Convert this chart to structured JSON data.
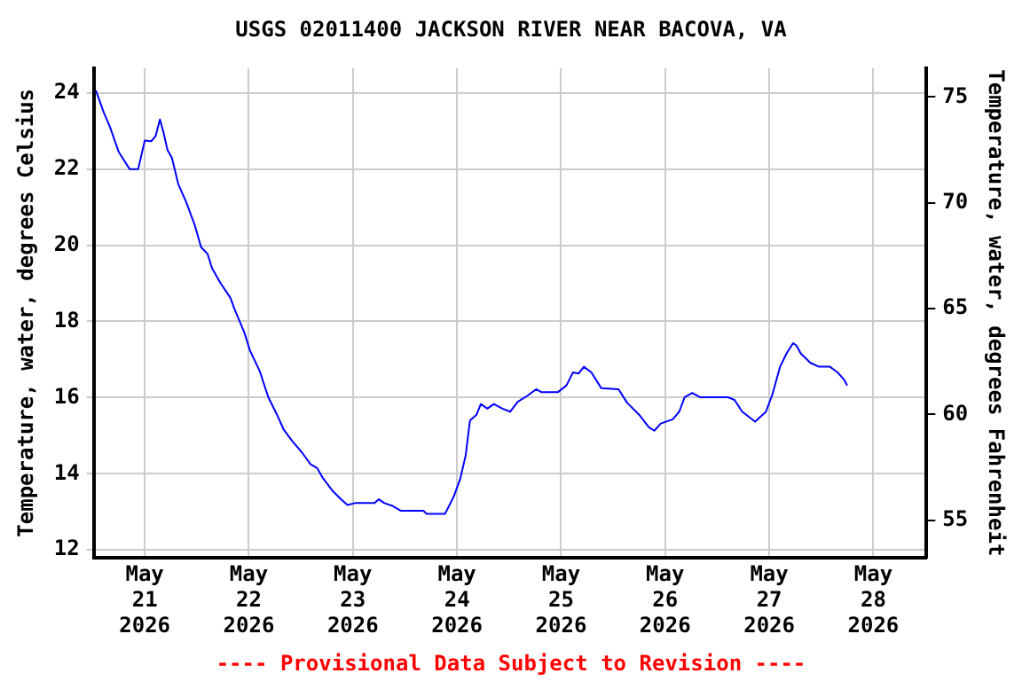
{
  "chart_data": {
    "type": "line",
    "title": "USGS 02011400 JACKSON RIVER NEAR BACOVA, VA",
    "ylabel": "Temperature, water, degrees Celsius",
    "y2label": "Temperature, water, degrees Fahrenheit",
    "annotations": [
      "---- Provisional Data Subject to Revision ----"
    ],
    "x": [
      "2026-05-20T12:45",
      "2026-05-20T14:30",
      "2026-05-20T16:00",
      "2026-05-20T18:00",
      "2026-05-20T20:30",
      "2026-05-20T22:30",
      "2026-05-21T00:00",
      "2026-05-21T01:30",
      "2026-05-21T02:30",
      "2026-05-21T03:30",
      "2026-05-21T04:15",
      "2026-05-21T05:15",
      "2026-05-21T06:15",
      "2026-05-21T07:45",
      "2026-05-21T09:30",
      "2026-05-21T11:30",
      "2026-05-21T13:00",
      "2026-05-21T14:30",
      "2026-05-21T15:30",
      "2026-05-21T17:30",
      "2026-05-21T19:45",
      "2026-05-21T20:45",
      "2026-05-21T23:00",
      "2026-05-22T00:15",
      "2026-05-22T02:30",
      "2026-05-22T04:30",
      "2026-05-22T06:30",
      "2026-05-22T08:00",
      "2026-05-22T10:00",
      "2026-05-22T12:15",
      "2026-05-22T14:15",
      "2026-05-22T15:45",
      "2026-05-22T17:00",
      "2026-05-22T19:15",
      "2026-05-22T21:15",
      "2026-05-22T22:45",
      "2026-05-23T00:30",
      "2026-05-23T05:00",
      "2026-05-23T06:00",
      "2026-05-23T07:15",
      "2026-05-23T09:15",
      "2026-05-23T11:00",
      "2026-05-23T16:15",
      "2026-05-23T17:00",
      "2026-05-23T21:15",
      "2026-05-23T23:15",
      "2026-05-24T00:45",
      "2026-05-24T02:00",
      "2026-05-24T03:00",
      "2026-05-24T04:30",
      "2026-05-24T05:30",
      "2026-05-24T07:00",
      "2026-05-24T08:30",
      "2026-05-24T10:30",
      "2026-05-24T12:15",
      "2026-05-24T14:00",
      "2026-05-24T16:15",
      "2026-05-24T18:15",
      "2026-05-24T19:30",
      "2026-05-24T23:15",
      "2026-05-25T01:15",
      "2026-05-25T02:45",
      "2026-05-25T04:00",
      "2026-05-25T05:15",
      "2026-05-25T07:00",
      "2026-05-25T09:15",
      "2026-05-25T13:15",
      "2026-05-25T15:15",
      "2026-05-25T18:00",
      "2026-05-25T20:15",
      "2026-05-25T21:30",
      "2026-05-25T23:00",
      "2026-05-26T01:45",
      "2026-05-26T03:15",
      "2026-05-26T04:30",
      "2026-05-26T06:15",
      "2026-05-26T08:00",
      "2026-05-26T14:30",
      "2026-05-26T16:00",
      "2026-05-26T17:45",
      "2026-05-26T20:45",
      "2026-05-26T23:15",
      "2026-05-27T00:45",
      "2026-05-27T02:30",
      "2026-05-27T04:00",
      "2026-05-27T05:30",
      "2026-05-27T06:15",
      "2026-05-27T07:15",
      "2026-05-27T09:30",
      "2026-05-27T11:30",
      "2026-05-27T14:00",
      "2026-05-27T15:45",
      "2026-05-27T17:15",
      "2026-05-27T18:00"
    ],
    "series": [
      {
        "color": "#0000ff",
        "values": [
          24.06,
          23.5,
          23.1,
          22.45,
          22.0,
          22.0,
          22.75,
          22.73,
          22.86,
          23.3,
          23.0,
          22.5,
          22.3,
          21.6,
          21.15,
          20.54,
          19.95,
          19.77,
          19.4,
          19.0,
          18.62,
          18.31,
          17.7,
          17.24,
          16.7,
          16.01,
          15.55,
          15.17,
          14.86,
          14.56,
          14.25,
          14.15,
          13.9,
          13.56,
          13.33,
          13.18,
          13.23,
          13.23,
          13.33,
          13.23,
          13.15,
          13.03,
          13.03,
          12.95,
          12.95,
          13.4,
          13.87,
          14.48,
          15.4,
          15.55,
          15.83,
          15.71,
          15.83,
          15.71,
          15.63,
          15.89,
          16.05,
          16.22,
          16.14,
          16.14,
          16.32,
          16.66,
          16.63,
          16.81,
          16.66,
          16.25,
          16.22,
          15.86,
          15.55,
          15.22,
          15.13,
          15.32,
          15.43,
          15.63,
          16.01,
          16.12,
          16.01,
          16.01,
          15.94,
          15.63,
          15.37,
          15.63,
          16.09,
          16.81,
          17.16,
          17.43,
          17.37,
          17.16,
          16.91,
          16.81,
          16.81,
          16.66,
          16.47,
          16.32
        ]
      }
    ],
    "xlim": [
      "2026-05-20T12:15",
      "2026-05-28T12:15"
    ],
    "xticks": [
      {
        "value": "2026-05-21",
        "label": "May 21 2026"
      },
      {
        "value": "2026-05-22",
        "label": "May 22 2026"
      },
      {
        "value": "2026-05-23",
        "label": "May 23 2026"
      },
      {
        "value": "2026-05-24",
        "label": "May 24 2026"
      },
      {
        "value": "2026-05-25",
        "label": "May 25 2026"
      },
      {
        "value": "2026-05-26",
        "label": "May 26 2026"
      },
      {
        "value": "2026-05-27",
        "label": "May 27 2026"
      },
      {
        "value": "2026-05-28",
        "label": "May 28 2026"
      }
    ],
    "ylim": [
      11.8,
      24.65
    ],
    "yticks": [
      12,
      14,
      16,
      18,
      20,
      22,
      24
    ],
    "y2lim": [
      53.24,
      76.37
    ],
    "y2ticks": [
      55,
      60,
      65,
      70,
      75
    ],
    "grid": true,
    "legend": false,
    "marker": "none",
    "line_style": "solid"
  }
}
